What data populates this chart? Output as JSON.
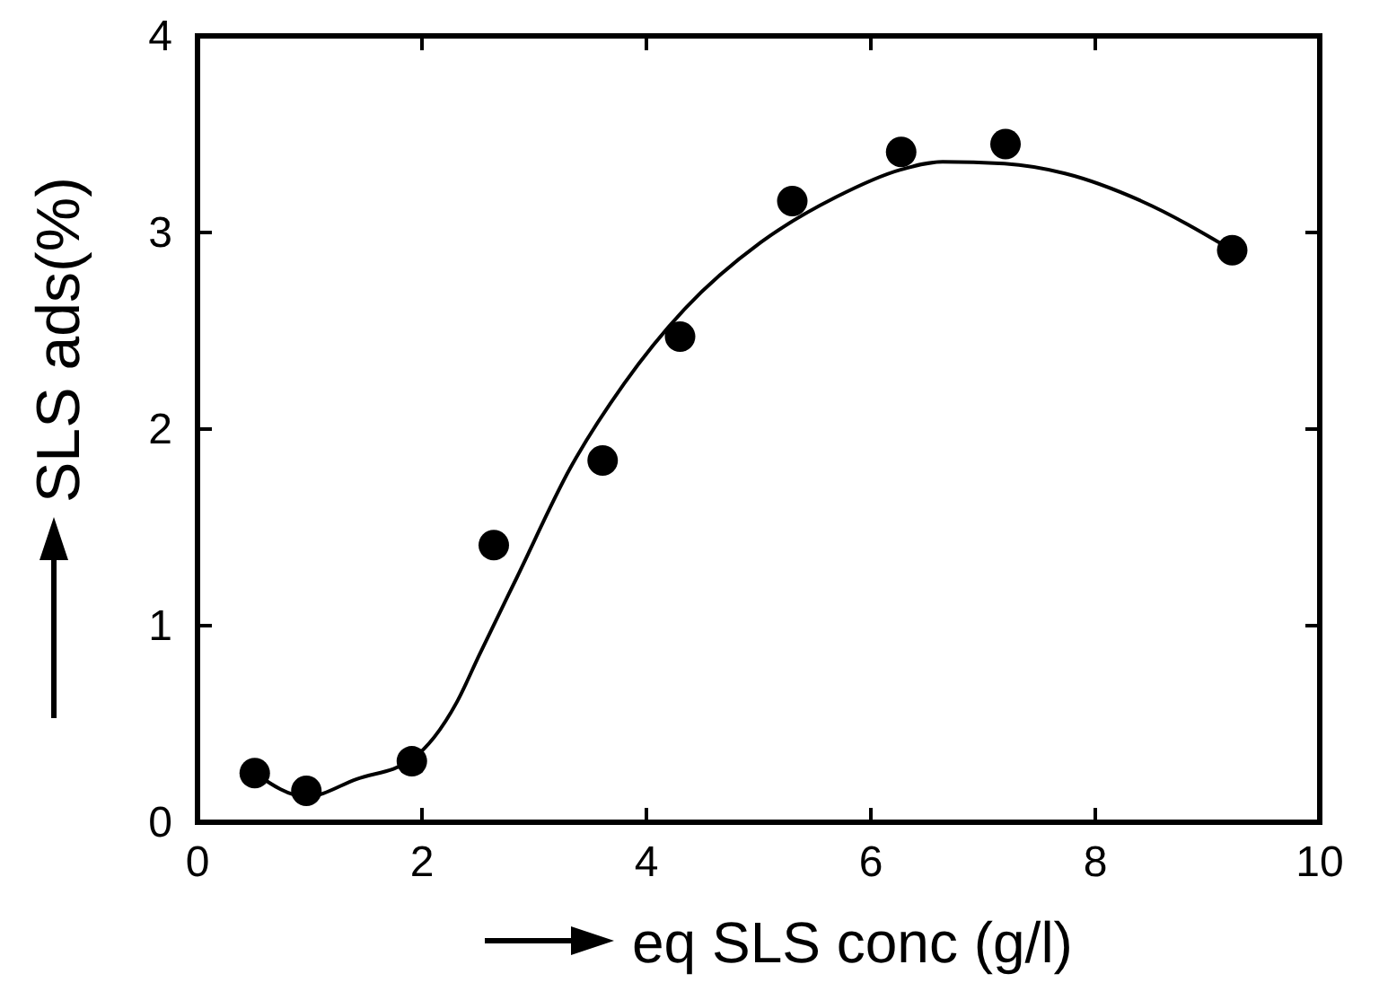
{
  "chart_data": {
    "type": "scatter",
    "xlabel": "eq SLS conc (g/l)",
    "ylabel": "SLS ads(%)",
    "xlim": [
      0,
      10
    ],
    "ylim": [
      0,
      4
    ],
    "xticks": [
      0,
      2,
      4,
      6,
      8,
      10
    ],
    "yticks": [
      0,
      1,
      2,
      3,
      4
    ],
    "grid": false,
    "series": [
      {
        "marker": "circle",
        "color": "#000000",
        "x": [
          0.51,
          0.97,
          1.91,
          2.64,
          3.61,
          4.3,
          5.3,
          6.27,
          7.2,
          9.22
        ],
        "values": [
          0.25,
          0.16,
          0.31,
          1.41,
          1.84,
          2.47,
          3.16,
          3.41,
          3.45,
          2.91
        ]
      },
      {
        "type": "line",
        "line_style": "solid",
        "color": "#000000",
        "x": [
          0.51,
          0.97,
          1.42,
          1.91,
          2.31,
          2.51,
          2.85,
          3.32,
          3.8,
          4.34,
          5.02,
          5.69,
          6.27,
          6.64,
          7.19,
          7.73,
          8.41,
          9.22
        ],
        "values": [
          0.25,
          0.13,
          0.22,
          0.32,
          0.61,
          0.85,
          1.25,
          1.8,
          2.23,
          2.61,
          2.95,
          3.18,
          3.32,
          3.36,
          3.35,
          3.3,
          3.16,
          2.91
        ]
      }
    ]
  }
}
